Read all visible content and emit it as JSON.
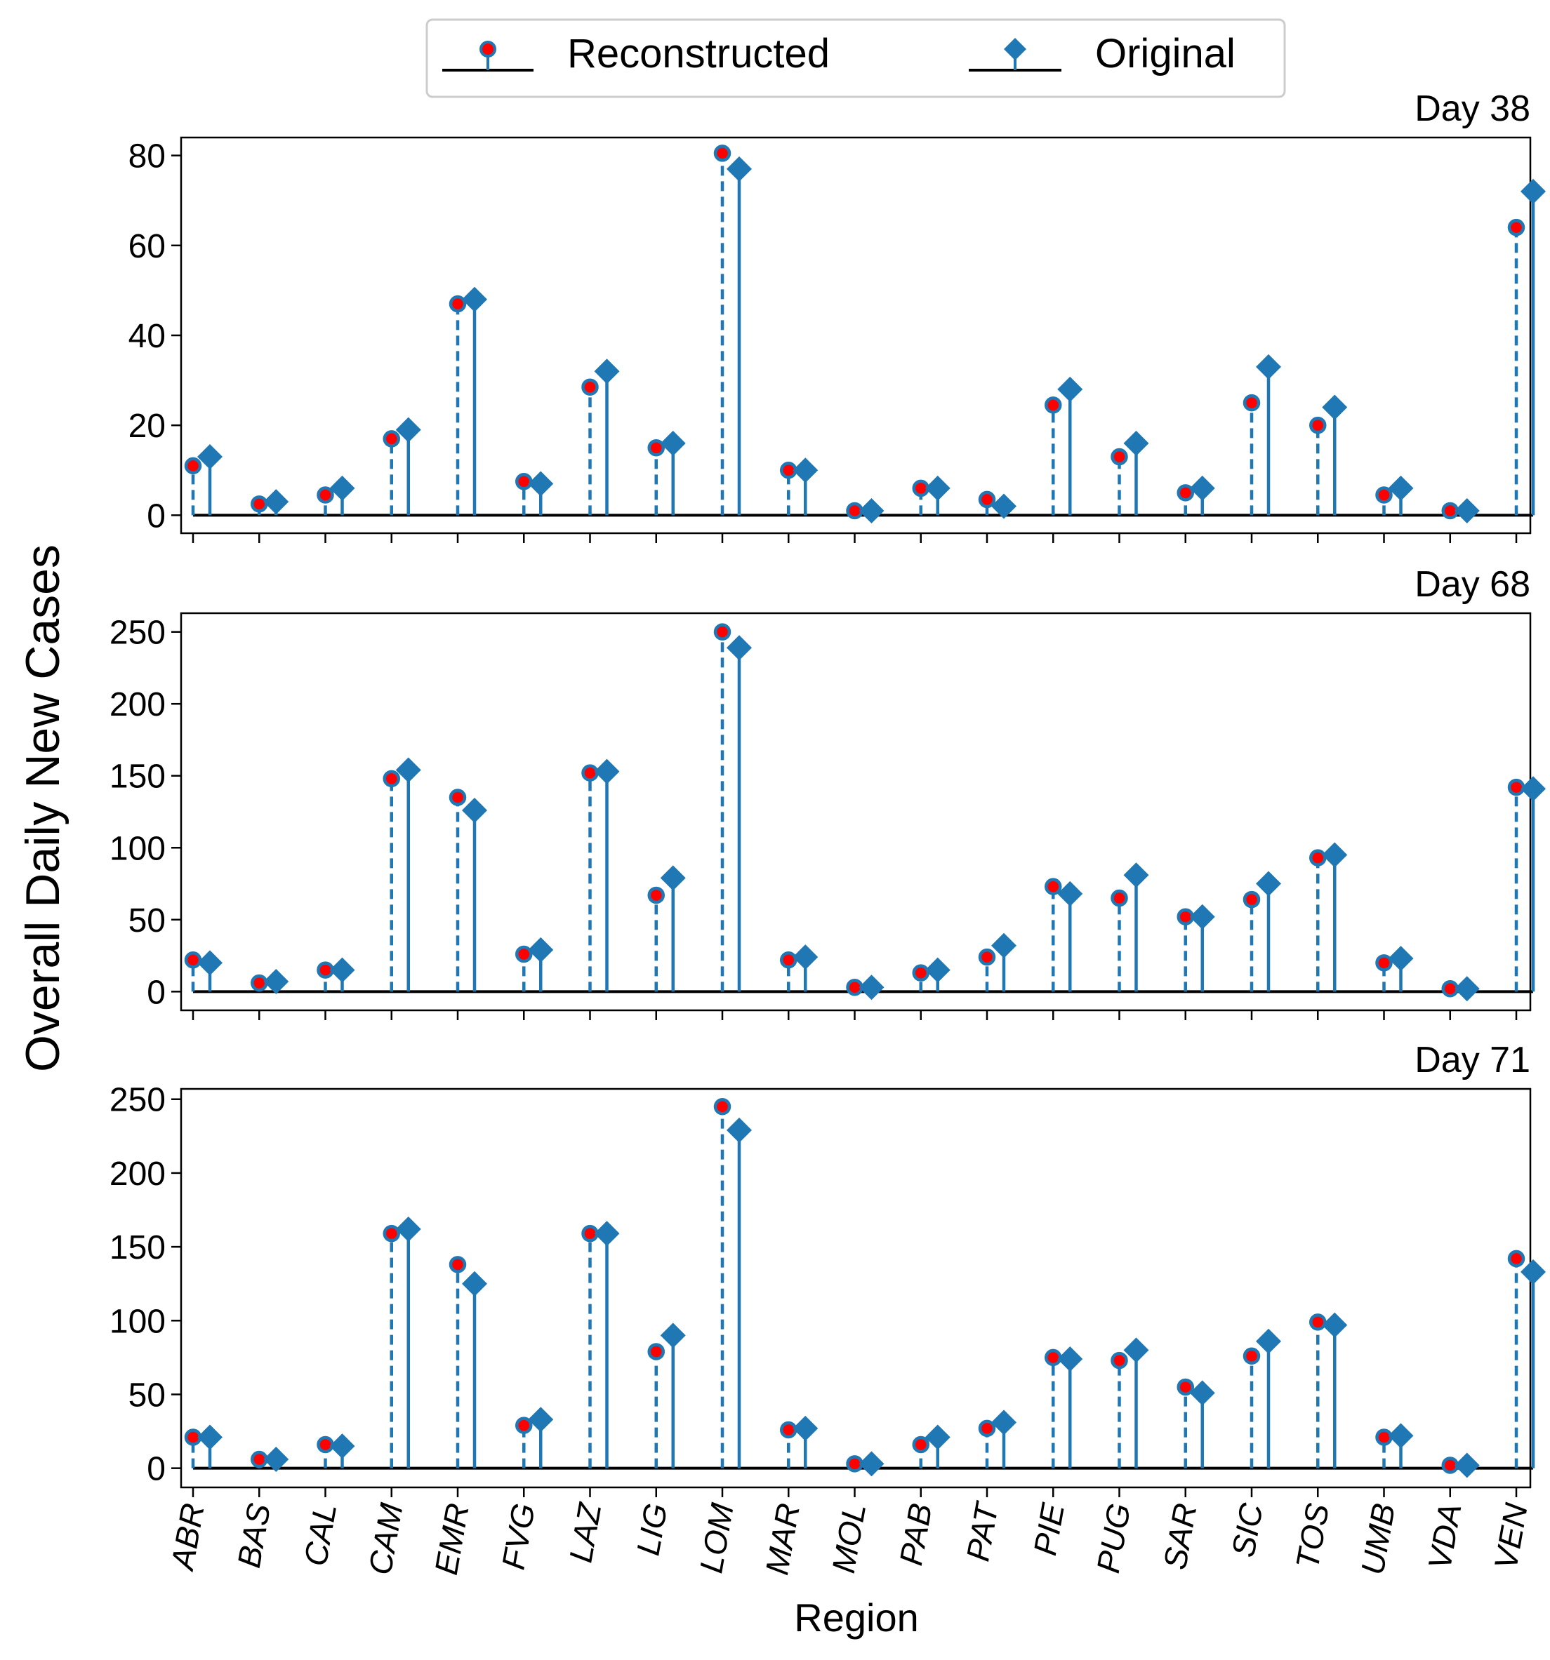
{
  "ylabel": "Overall Daily New Cases",
  "xlabel": "Region",
  "legend": {
    "items": [
      {
        "label": "Reconstructed",
        "marker": "circle",
        "color": "#ff0000",
        "edge": "#1f77b4"
      },
      {
        "label": "Original",
        "marker": "diamond",
        "color": "#1f77b4"
      }
    ],
    "placement": "top-center"
  },
  "colors": {
    "stem": "#1f77b4",
    "baseline": "#000000",
    "reconstructed_fill": "#ff0000",
    "original_fill": "#1f77b4"
  },
  "chart_data": [
    {
      "type": "stem",
      "title": "Day 38",
      "categories": [
        "ABR",
        "BAS",
        "CAL",
        "CAM",
        "EMR",
        "FVG",
        "LAZ",
        "LIG",
        "LOM",
        "MAR",
        "MOL",
        "PAB",
        "PAT",
        "PIE",
        "PUG",
        "SAR",
        "SIC",
        "TOS",
        "UMB",
        "VDA",
        "VEN"
      ],
      "ylim": [
        -4,
        84
      ],
      "yticks": [
        0,
        20,
        40,
        60,
        80
      ],
      "series": [
        {
          "name": "Reconstructed",
          "values": [
            11,
            2.5,
            4.5,
            17,
            47,
            7.5,
            28.5,
            15,
            80.5,
            10,
            1,
            6,
            3.5,
            24.5,
            13,
            5,
            25,
            20,
            4.5,
            1,
            64
          ]
        },
        {
          "name": "Original",
          "values": [
            13,
            3,
            6,
            19,
            48,
            7,
            32,
            16,
            77,
            10,
            1,
            6,
            2,
            28,
            16,
            6,
            33,
            24,
            6,
            1,
            72
          ]
        }
      ]
    },
    {
      "type": "stem",
      "title": "Day 68",
      "categories": [
        "ABR",
        "BAS",
        "CAL",
        "CAM",
        "EMR",
        "FVG",
        "LAZ",
        "LIG",
        "LOM",
        "MAR",
        "MOL",
        "PAB",
        "PAT",
        "PIE",
        "PUG",
        "SAR",
        "SIC",
        "TOS",
        "UMB",
        "VDA",
        "VEN"
      ],
      "ylim": [
        -13,
        263
      ],
      "yticks": [
        0,
        50,
        100,
        150,
        200,
        250
      ],
      "series": [
        {
          "name": "Reconstructed",
          "values": [
            22,
            6,
            15,
            148,
            135,
            26,
            152,
            67,
            250,
            22,
            3,
            13,
            24,
            73,
            65,
            52,
            64,
            93,
            20,
            2,
            142
          ]
        },
        {
          "name": "Original",
          "values": [
            20,
            7,
            15,
            154,
            126,
            29,
            153,
            79,
            239,
            24,
            3,
            15,
            32,
            68,
            81,
            52,
            75,
            95,
            23,
            2,
            141
          ]
        }
      ]
    },
    {
      "type": "stem",
      "title": "Day 71",
      "categories": [
        "ABR",
        "BAS",
        "CAL",
        "CAM",
        "EMR",
        "FVG",
        "LAZ",
        "LIG",
        "LOM",
        "MAR",
        "MOL",
        "PAB",
        "PAT",
        "PIE",
        "PUG",
        "SAR",
        "SIC",
        "TOS",
        "UMB",
        "VDA",
        "VEN"
      ],
      "ylim": [
        -13,
        257
      ],
      "yticks": [
        0,
        50,
        100,
        150,
        200,
        250
      ],
      "series": [
        {
          "name": "Reconstructed",
          "values": [
            21,
            6,
            16,
            159,
            138,
            29,
            159,
            79,
            245,
            26,
            3,
            16,
            27,
            75,
            73,
            55,
            76,
            99,
            21,
            2,
            142
          ]
        },
        {
          "name": "Original",
          "values": [
            21,
            6,
            15,
            162,
            125,
            33,
            159,
            90,
            229,
            27,
            3,
            21,
            31,
            74,
            80,
            51,
            86,
            97,
            22,
            2,
            133
          ]
        }
      ]
    }
  ]
}
